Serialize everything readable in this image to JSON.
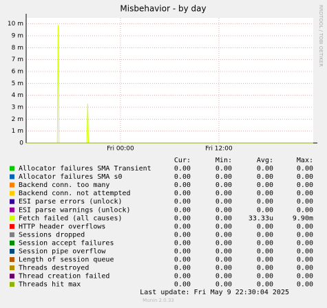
{
  "chart_data": {
    "type": "line",
    "title": "Misbehavior - by day",
    "side_text": "RRDTOOL / TOBI OETIKER",
    "x": [
      -11.5,
      -7.7,
      -7.6,
      -7.5,
      -4.1,
      -4.0,
      -3.9,
      23.5
    ],
    "xlim": [
      -11.5,
      23.5
    ],
    "xticks": [
      {
        "value": 0,
        "label": "Fri 00:00"
      },
      {
        "value": 12,
        "label": "Fri 12:00"
      }
    ],
    "ylim": [
      0,
      0.0105
    ],
    "yticks": [
      0,
      {
        "value": 0.001,
        "label": "1 m"
      },
      {
        "value": 0.002,
        "label": "2 m"
      },
      {
        "value": 0.003,
        "label": "3 m"
      },
      {
        "value": 0.004,
        "label": "4 m"
      },
      {
        "value": 0.005,
        "label": "5 m"
      },
      {
        "value": 0.006,
        "label": "6 m"
      },
      {
        "value": 0.007,
        "label": "7 m"
      },
      {
        "value": 0.008,
        "label": "8 m"
      },
      {
        "value": 0.009,
        "label": "9 m"
      },
      {
        "value": 0.01,
        "label": "10 m"
      }
    ],
    "grid": true,
    "stat_headers": [
      "Cur:",
      "Min:",
      "Avg:",
      "Max:"
    ],
    "series": [
      {
        "name": "Allocator failures SMA Transient",
        "color": "#00cc00",
        "values": [
          0,
          0,
          0,
          0,
          0,
          0,
          0,
          0
        ],
        "stats": [
          "0.00",
          "0.00",
          "0.00",
          "0.00"
        ]
      },
      {
        "name": "Allocator failures SMA s0",
        "color": "#0066b3",
        "values": [
          0,
          0,
          0,
          0,
          0,
          0,
          0,
          0
        ],
        "stats": [
          "0.00",
          "0.00",
          "0.00",
          "0.00"
        ]
      },
      {
        "name": "Backend conn. too many",
        "color": "#ff8000",
        "values": [
          0,
          0,
          0,
          0,
          0,
          0,
          0,
          0
        ],
        "stats": [
          "0.00",
          "0.00",
          "0.00",
          "0.00"
        ]
      },
      {
        "name": "Backend conn. not attempted",
        "color": "#ffcc00",
        "values": [
          0,
          0,
          0,
          0,
          0,
          0,
          0,
          0
        ],
        "stats": [
          "0.00",
          "0.00",
          "0.00",
          "0.00"
        ]
      },
      {
        "name": "ESI parse errors (unlock)",
        "color": "#330099",
        "values": [
          0,
          0,
          0,
          0,
          0,
          0,
          0,
          0
        ],
        "stats": [
          "0.00",
          "0.00",
          "0.00",
          "0.00"
        ]
      },
      {
        "name": "ESI parse warnings (unlock)",
        "color": "#990099",
        "values": [
          0,
          0,
          0,
          0,
          0,
          0,
          0,
          0
        ],
        "stats": [
          "0.00",
          "0.00",
          "0.00",
          "0.00"
        ]
      },
      {
        "name": "Fetch failed (all causes)",
        "color": "#ccff00",
        "values": [
          0,
          0,
          0.0099,
          0,
          0,
          0.0033,
          0,
          0
        ],
        "stats": [
          "0.00",
          "0.00",
          "33.33u",
          "9.90m"
        ]
      },
      {
        "name": "HTTP header overflows",
        "color": "#ff0000",
        "values": [
          0,
          0,
          0,
          0,
          0,
          0,
          0,
          0
        ],
        "stats": [
          "0.00",
          "0.00",
          "0.00",
          "0.00"
        ]
      },
      {
        "name": "Sessions dropped",
        "color": "#808080",
        "values": [
          0,
          0,
          0,
          0,
          0,
          0,
          0,
          0
        ],
        "stats": [
          "0.00",
          "0.00",
          "0.00",
          "0.00"
        ]
      },
      {
        "name": "Session accept failures",
        "color": "#008f00",
        "values": [
          0,
          0,
          0,
          0,
          0,
          0,
          0,
          0
        ],
        "stats": [
          "0.00",
          "0.00",
          "0.00",
          "0.00"
        ]
      },
      {
        "name": "Session pipe overflow",
        "color": "#00487d",
        "values": [
          0,
          0,
          0,
          0,
          0,
          0,
          0,
          0
        ],
        "stats": [
          "0.00",
          "0.00",
          "0.00",
          "0.00"
        ]
      },
      {
        "name": "Length of session queue",
        "color": "#b35a00",
        "values": [
          0,
          0,
          0,
          0,
          0,
          0,
          0,
          0
        ],
        "stats": [
          "0.00",
          "0.00",
          "0.00",
          "0.00"
        ]
      },
      {
        "name": "Threads destroyed",
        "color": "#b38f00",
        "values": [
          0,
          0,
          0,
          0,
          0,
          0,
          0,
          0
        ],
        "stats": [
          "0.00",
          "0.00",
          "0.00",
          "0.00"
        ]
      },
      {
        "name": "Thread creation failed",
        "color": "#6b006b",
        "values": [
          0,
          0,
          0,
          0,
          0,
          0,
          0,
          0
        ],
        "stats": [
          "0.00",
          "0.00",
          "0.00",
          "0.00"
        ]
      },
      {
        "name": "Threads hit max",
        "color": "#8fb300",
        "values": [
          0,
          0,
          0,
          0,
          0,
          0,
          0,
          0
        ],
        "stats": [
          "0.00",
          "0.00",
          "0.00",
          "0.00"
        ]
      }
    ],
    "last_update": "Last update:  Fri May  9 22:30:04 2025",
    "footer": "Munin 2.0.33"
  }
}
